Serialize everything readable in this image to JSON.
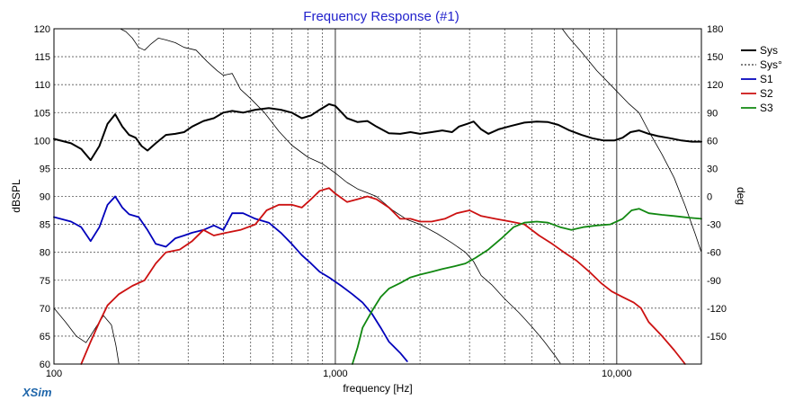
{
  "chart_data": {
    "type": "line",
    "title": "Frequency Response (#1)",
    "xlabel": "frequency [Hz]",
    "ylabel": "dBSPL",
    "y2label": "deg",
    "x_scale": "log",
    "xlim": [
      100,
      20000
    ],
    "ylim": [
      60,
      120
    ],
    "y2lim": [
      -180,
      180
    ],
    "x_ticks": [
      {
        "value": 100,
        "label": "100"
      },
      {
        "value": 1000,
        "label": "1,000"
      },
      {
        "value": 10000,
        "label": "10,000"
      }
    ],
    "y_ticks": [
      60,
      65,
      70,
      75,
      80,
      85,
      90,
      95,
      100,
      105,
      110,
      115,
      120
    ],
    "y2_ticks": [
      -150,
      -120,
      -90,
      -60,
      -30,
      0,
      30,
      60,
      90,
      120,
      150,
      180
    ],
    "grid": true,
    "legend_position": "top-right",
    "brand": "XSim",
    "series": [
      {
        "name": "Sys",
        "color": "#000000",
        "style": "solid-thick",
        "axis": "left",
        "points": [
          [
            100,
            100.3
          ],
          [
            115,
            99.5
          ],
          [
            125,
            98.5
          ],
          [
            135,
            96.5
          ],
          [
            145,
            99
          ],
          [
            155,
            103
          ],
          [
            165,
            104.7
          ],
          [
            175,
            102.5
          ],
          [
            185,
            101
          ],
          [
            195,
            100.5
          ],
          [
            205,
            99
          ],
          [
            215,
            98.2
          ],
          [
            230,
            99.5
          ],
          [
            250,
            101
          ],
          [
            270,
            101.2
          ],
          [
            290,
            101.5
          ],
          [
            310,
            102.5
          ],
          [
            340,
            103.5
          ],
          [
            370,
            104
          ],
          [
            400,
            105
          ],
          [
            430,
            105.3
          ],
          [
            470,
            105
          ],
          [
            520,
            105.5
          ],
          [
            580,
            105.8
          ],
          [
            640,
            105.5
          ],
          [
            700,
            105
          ],
          [
            760,
            104
          ],
          [
            820,
            104.5
          ],
          [
            880,
            105.5
          ],
          [
            950,
            106.5
          ],
          [
            1000,
            106.2
          ],
          [
            1100,
            104
          ],
          [
            1200,
            103.3
          ],
          [
            1300,
            103.5
          ],
          [
            1400,
            102.5
          ],
          [
            1550,
            101.3
          ],
          [
            1700,
            101.2
          ],
          [
            1850,
            101.5
          ],
          [
            2000,
            101.2
          ],
          [
            2200,
            101.5
          ],
          [
            2400,
            101.8
          ],
          [
            2600,
            101.5
          ],
          [
            2750,
            102.5
          ],
          [
            2950,
            103
          ],
          [
            3100,
            103.4
          ],
          [
            3300,
            102
          ],
          [
            3500,
            101.2
          ],
          [
            3800,
            102
          ],
          [
            4200,
            102.6
          ],
          [
            4700,
            103.2
          ],
          [
            5200,
            103.4
          ],
          [
            5700,
            103.3
          ],
          [
            6200,
            102.8
          ],
          [
            6800,
            101.8
          ],
          [
            7500,
            101
          ],
          [
            8200,
            100.4
          ],
          [
            9000,
            100
          ],
          [
            9800,
            100
          ],
          [
            10500,
            100.5
          ],
          [
            11200,
            101.5
          ],
          [
            12000,
            101.8
          ],
          [
            13000,
            101.2
          ],
          [
            14000,
            100.8
          ],
          [
            15500,
            100.4
          ],
          [
            17000,
            100
          ],
          [
            18500,
            99.8
          ],
          [
            20000,
            99.8
          ]
        ]
      },
      {
        "name": "Sys°",
        "color": "#000000",
        "style": "dotted",
        "axis": "right",
        "points": [
          [
            100,
            -120
          ],
          [
            110,
            -135
          ],
          [
            120,
            -150
          ],
          [
            130,
            -157
          ],
          [
            140,
            -142
          ],
          [
            150,
            -128
          ],
          [
            160,
            -138
          ],
          [
            166,
            -160
          ],
          [
            170,
            -179
          ],
          [
            172,
            180
          ],
          [
            180,
            177
          ],
          [
            190,
            170
          ],
          [
            200,
            160
          ],
          [
            210,
            157
          ],
          [
            220,
            163
          ],
          [
            235,
            170
          ],
          [
            250,
            168
          ],
          [
            270,
            165
          ],
          [
            290,
            160
          ],
          [
            320,
            157
          ],
          [
            350,
            145
          ],
          [
            380,
            135
          ],
          [
            400,
            130
          ],
          [
            430,
            132
          ],
          [
            460,
            115
          ],
          [
            500,
            105
          ],
          [
            560,
            90
          ],
          [
            630,
            70
          ],
          [
            700,
            55
          ],
          [
            800,
            42
          ],
          [
            900,
            35
          ],
          [
            1000,
            25
          ],
          [
            1100,
            15
          ],
          [
            1200,
            8
          ],
          [
            1400,
            0
          ],
          [
            1600,
            -15
          ],
          [
            1800,
            -25
          ],
          [
            2000,
            -30
          ],
          [
            2300,
            -40
          ],
          [
            2600,
            -50
          ],
          [
            2900,
            -60
          ],
          [
            3100,
            -70
          ],
          [
            3300,
            -85
          ],
          [
            3600,
            -95
          ],
          [
            4000,
            -110
          ],
          [
            4500,
            -125
          ],
          [
            5000,
            -140
          ],
          [
            5500,
            -155
          ],
          [
            6000,
            -170
          ],
          [
            6300,
            -179
          ],
          [
            6400,
            180
          ],
          [
            6700,
            172
          ],
          [
            7500,
            155
          ],
          [
            8500,
            135
          ],
          [
            9500,
            120
          ],
          [
            11000,
            100
          ],
          [
            12000,
            90
          ],
          [
            13000,
            70
          ],
          [
            14500,
            45
          ],
          [
            16000,
            20
          ],
          [
            17500,
            -10
          ],
          [
            19000,
            -40
          ],
          [
            20000,
            -60
          ]
        ]
      },
      {
        "name": "S1",
        "color": "#0000bb",
        "style": "solid",
        "axis": "left",
        "points": [
          [
            100,
            86.3
          ],
          [
            115,
            85.5
          ],
          [
            125,
            84.5
          ],
          [
            135,
            82
          ],
          [
            145,
            84.5
          ],
          [
            155,
            88.5
          ],
          [
            165,
            90
          ],
          [
            175,
            88
          ],
          [
            185,
            86.8
          ],
          [
            200,
            86.3
          ],
          [
            215,
            84
          ],
          [
            230,
            81.5
          ],
          [
            250,
            81
          ],
          [
            270,
            82.5
          ],
          [
            290,
            83
          ],
          [
            310,
            83.5
          ],
          [
            340,
            84
          ],
          [
            370,
            84.8
          ],
          [
            400,
            84
          ],
          [
            430,
            87
          ],
          [
            470,
            87
          ],
          [
            520,
            86
          ],
          [
            580,
            85.3
          ],
          [
            640,
            83.5
          ],
          [
            700,
            81.5
          ],
          [
            760,
            79.5
          ],
          [
            820,
            78
          ],
          [
            880,
            76.5
          ],
          [
            950,
            75.5
          ],
          [
            1050,
            74
          ],
          [
            1150,
            72.5
          ],
          [
            1250,
            71
          ],
          [
            1350,
            69
          ],
          [
            1450,
            66.5
          ],
          [
            1550,
            64
          ],
          [
            1700,
            62
          ],
          [
            1800,
            60.5
          ]
        ]
      },
      {
        "name": "S2",
        "color": "#cc1111",
        "style": "solid",
        "axis": "left",
        "points": [
          [
            125,
            60
          ],
          [
            135,
            64
          ],
          [
            145,
            67.5
          ],
          [
            155,
            70.5
          ],
          [
            170,
            72.5
          ],
          [
            190,
            74
          ],
          [
            210,
            75
          ],
          [
            230,
            78
          ],
          [
            250,
            80
          ],
          [
            280,
            80.5
          ],
          [
            310,
            82
          ],
          [
            340,
            84
          ],
          [
            370,
            83
          ],
          [
            410,
            83.5
          ],
          [
            460,
            84
          ],
          [
            520,
            85
          ],
          [
            570,
            87.5
          ],
          [
            630,
            88.5
          ],
          [
            700,
            88.5
          ],
          [
            760,
            88
          ],
          [
            820,
            89.5
          ],
          [
            880,
            91
          ],
          [
            950,
            91.5
          ],
          [
            1000,
            90.5
          ],
          [
            1100,
            89
          ],
          [
            1200,
            89.5
          ],
          [
            1300,
            90
          ],
          [
            1400,
            89.5
          ],
          [
            1550,
            88
          ],
          [
            1700,
            86
          ],
          [
            1850,
            86
          ],
          [
            2000,
            85.5
          ],
          [
            2200,
            85.5
          ],
          [
            2450,
            86
          ],
          [
            2700,
            87
          ],
          [
            3000,
            87.5
          ],
          [
            3300,
            86.5
          ],
          [
            3700,
            86
          ],
          [
            4200,
            85.5
          ],
          [
            4700,
            85
          ],
          [
            5300,
            83
          ],
          [
            5900,
            81.5
          ],
          [
            6500,
            80
          ],
          [
            7200,
            78.5
          ],
          [
            8000,
            76.5
          ],
          [
            8800,
            74.5
          ],
          [
            9600,
            73
          ],
          [
            10500,
            72
          ],
          [
            11500,
            71
          ],
          [
            12200,
            70
          ],
          [
            13000,
            67.5
          ],
          [
            14500,
            65
          ],
          [
            16000,
            62.5
          ],
          [
            17500,
            60
          ]
        ]
      },
      {
        "name": "S3",
        "color": "#118811",
        "style": "solid",
        "axis": "left",
        "points": [
          [
            1150,
            60
          ],
          [
            1200,
            63
          ],
          [
            1250,
            66.5
          ],
          [
            1350,
            69.5
          ],
          [
            1450,
            72
          ],
          [
            1550,
            73.5
          ],
          [
            1700,
            74.5
          ],
          [
            1850,
            75.5
          ],
          [
            2000,
            76
          ],
          [
            2200,
            76.5
          ],
          [
            2400,
            77
          ],
          [
            2650,
            77.5
          ],
          [
            2900,
            78
          ],
          [
            3150,
            79
          ],
          [
            3500,
            80.5
          ],
          [
            3900,
            82.5
          ],
          [
            4300,
            84.5
          ],
          [
            4700,
            85.3
          ],
          [
            5200,
            85.5
          ],
          [
            5700,
            85.3
          ],
          [
            6300,
            84.5
          ],
          [
            6900,
            84
          ],
          [
            7600,
            84.5
          ],
          [
            8500,
            84.8
          ],
          [
            9500,
            85
          ],
          [
            10500,
            86
          ],
          [
            11300,
            87.5
          ],
          [
            12000,
            87.8
          ],
          [
            13000,
            87
          ],
          [
            14500,
            86.7
          ],
          [
            16000,
            86.5
          ],
          [
            18000,
            86.2
          ],
          [
            20000,
            86
          ]
        ]
      }
    ]
  }
}
